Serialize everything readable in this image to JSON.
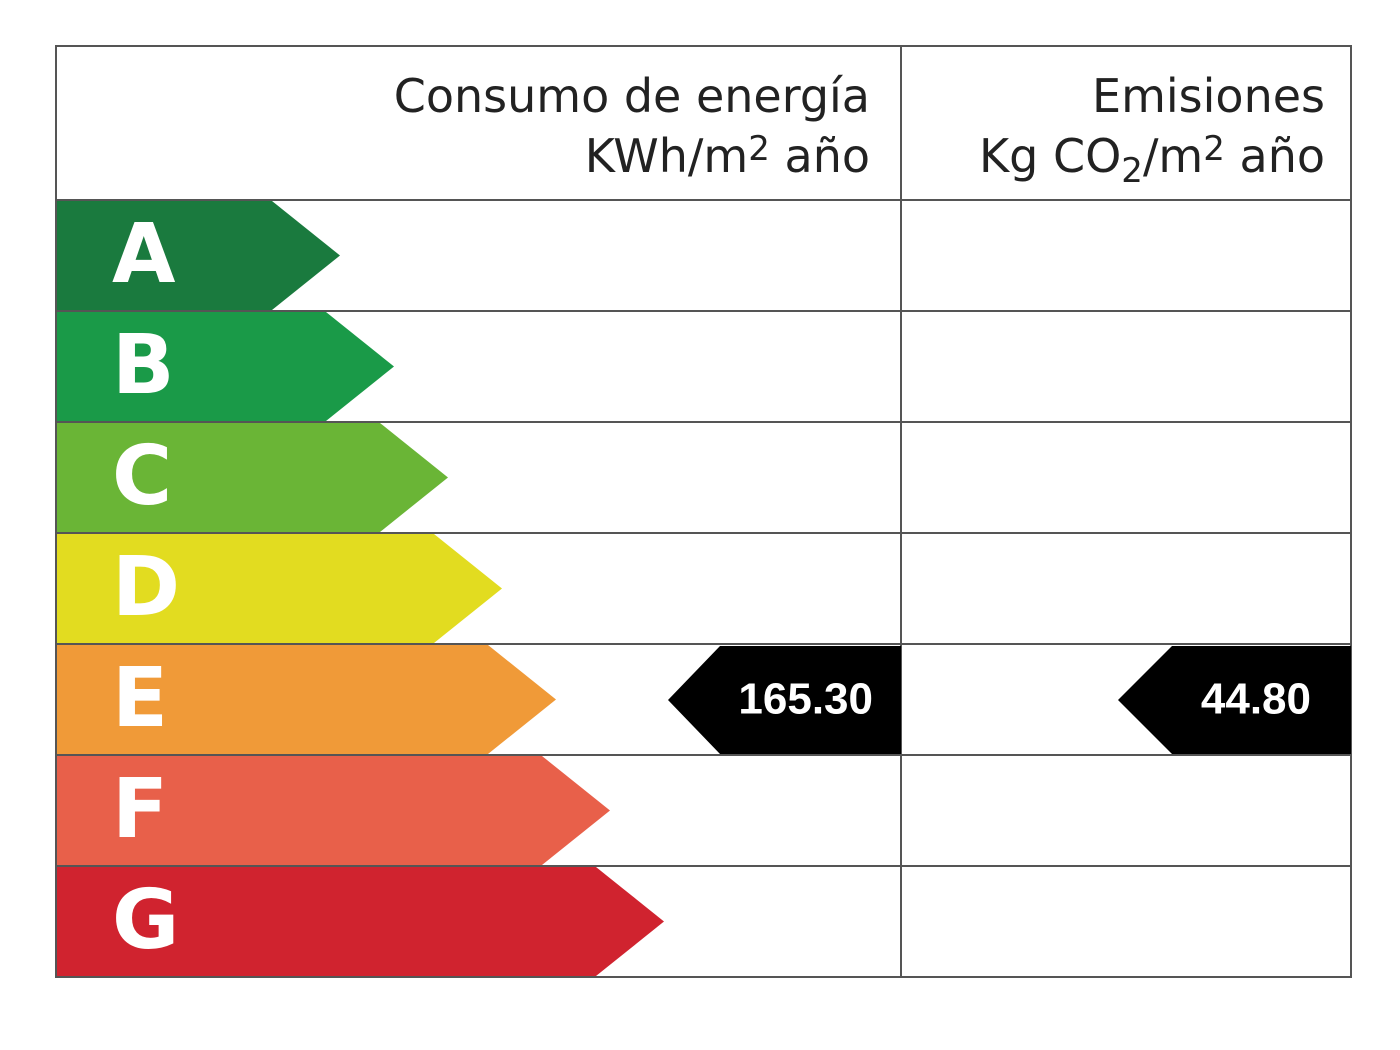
{
  "header": {
    "energy": {
      "title": "Consumo de energía",
      "unit": [
        "KWh/m",
        "2",
        " año"
      ]
    },
    "emissions": {
      "title": "Emisiones",
      "unit": [
        "Kg CO",
        "2",
        "/m",
        "2",
        " año"
      ]
    }
  },
  "grades": [
    {
      "letter": "A",
      "color": "#1a7a3e"
    },
    {
      "letter": "B",
      "color": "#1a9a48"
    },
    {
      "letter": "C",
      "color": "#6ab536"
    },
    {
      "letter": "D",
      "color": "#e2dc20"
    },
    {
      "letter": "E",
      "color": "#f09a38"
    },
    {
      "letter": "F",
      "color": "#e8604a"
    },
    {
      "letter": "G",
      "color": "#d0232f"
    }
  ],
  "ratings": {
    "energy": {
      "value": "165.30",
      "grade": "E"
    },
    "emissions": {
      "value": "44.80",
      "grade": "E"
    }
  }
}
